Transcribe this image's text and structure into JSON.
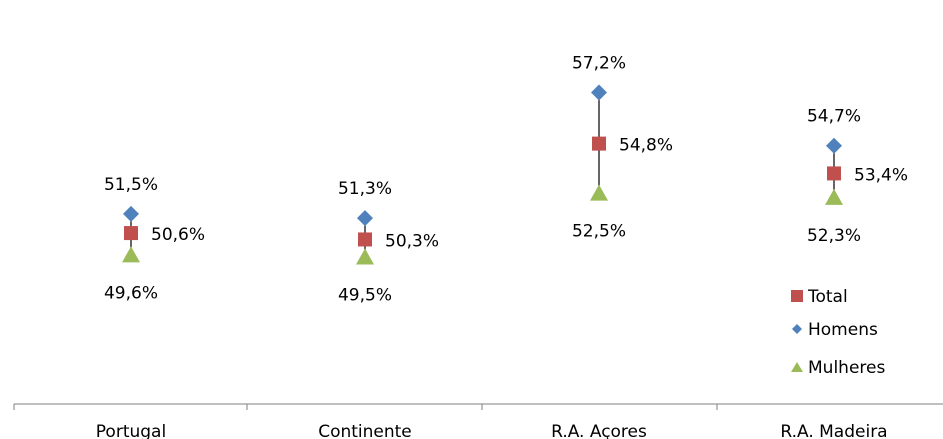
{
  "chart_data": {
    "type": "scatter",
    "categories": [
      "Portugal",
      "Continente",
      "R.A. Açores",
      "R.A. Madeira"
    ],
    "series": [
      {
        "name": "Total",
        "marker": "square",
        "color": "#C0504D",
        "values": [
          50.6,
          50.3,
          54.8,
          53.4
        ],
        "labels": [
          "50,6%",
          "50,3%",
          "54,8%",
          "53,4%"
        ]
      },
      {
        "name": "Homens",
        "marker": "diamond",
        "color": "#4F81BD",
        "values": [
          51.5,
          51.3,
          57.2,
          54.7
        ],
        "labels": [
          "51,5%",
          "51,3%",
          "57,2%",
          "54,7%"
        ]
      },
      {
        "name": "Mulheres",
        "marker": "triangle",
        "color": "#9BBB59",
        "values": [
          49.6,
          49.5,
          52.5,
          52.3
        ],
        "labels": [
          "49,6%",
          "49,5%",
          "52,5%",
          "52,3%"
        ]
      }
    ],
    "high_low_lines": true,
    "y_axis_visible": false,
    "grid": false,
    "legend_position": "right"
  }
}
